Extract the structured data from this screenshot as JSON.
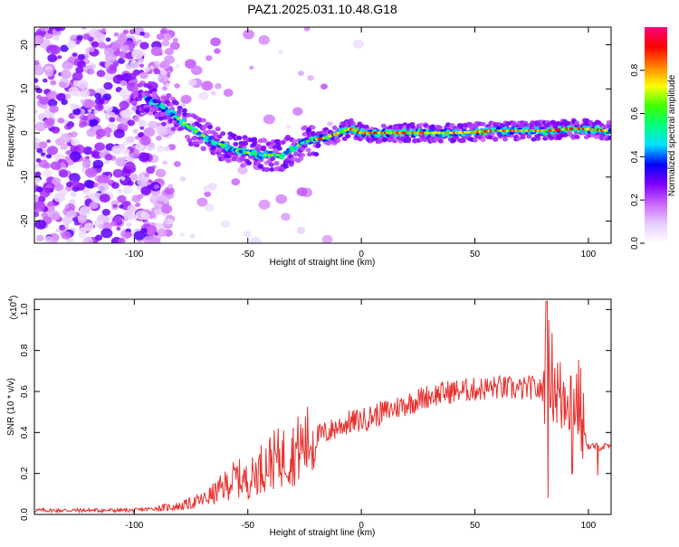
{
  "title": "PAZ1.2025.031.10.48.G18",
  "chart_data": [
    {
      "type": "heatmap",
      "title": "PAZ1.2025.031.10.48.G18",
      "xlabel": "Height of straight line (km)",
      "ylabel": "Frequency (Hz)",
      "xlim": [
        -144,
        110
      ],
      "ylim": [
        -25,
        24
      ],
      "xticks": [
        -100,
        -50,
        0,
        50,
        100
      ],
      "yticks": [
        -20,
        -10,
        0,
        10,
        20
      ],
      "colorbar": {
        "label": "Normalized spectral amplitude",
        "range": [
          0,
          1
        ],
        "ticks": [
          0.0,
          0.2,
          0.4,
          0.6,
          0.8
        ],
        "colors": [
          "#ffffff",
          "#e6ccff",
          "#cc66ff",
          "#8000ff",
          "#0000ff",
          "#00e0ff",
          "#00ff80",
          "#40ff00",
          "#ffff00",
          "#ff8000",
          "#ff0000",
          "#ff0080"
        ]
      },
      "ridge": {
        "x": [
          -95,
          -85,
          -75,
          -65,
          -55,
          -45,
          -35,
          -25,
          -15,
          -5,
          0,
          10,
          20,
          40,
          60,
          80,
          95,
          110
        ],
        "y": [
          8,
          5,
          1,
          -2,
          -4,
          -5,
          -5,
          -2,
          -1,
          1,
          0,
          0,
          0,
          0,
          0.5,
          0.5,
          1,
          0.5
        ]
      }
    },
    {
      "type": "line",
      "xlabel": "Height of straight line (km)",
      "ylabel": "SNR (10 * v/v)",
      "y_multiplier_label": "(x10",
      "y_multiplier_exp": "4",
      "xlim": [
        -144,
        110
      ],
      "ylim": [
        0,
        1.05
      ],
      "xticks": [
        -100,
        -50,
        0,
        50,
        100
      ],
      "yticks": [
        0.0,
        0.2,
        0.4,
        0.6,
        0.8,
        1.0
      ],
      "series": [
        {
          "color": "#e8322f",
          "x": [
            -144,
            -130,
            -115,
            -100,
            -90,
            -80,
            -70,
            -65,
            -60,
            -55,
            -50,
            -45,
            -40,
            -35,
            -30,
            -25,
            -20,
            -15,
            -10,
            -5,
            0,
            5,
            10,
            20,
            30,
            40,
            50,
            60,
            70,
            75,
            80,
            82,
            85,
            88,
            90,
            93,
            96,
            98,
            100,
            105,
            110
          ],
          "y": [
            0.02,
            0.02,
            0.02,
            0.02,
            0.03,
            0.04,
            0.07,
            0.1,
            0.14,
            0.18,
            0.16,
            0.22,
            0.26,
            0.28,
            0.3,
            0.34,
            0.38,
            0.4,
            0.43,
            0.45,
            0.46,
            0.48,
            0.5,
            0.54,
            0.58,
            0.6,
            0.61,
            0.62,
            0.61,
            0.62,
            0.6,
            0.75,
            0.65,
            0.55,
            0.62,
            0.58,
            0.55,
            0.4,
            0.33,
            0.33,
            0.33
          ]
        }
      ]
    }
  ]
}
